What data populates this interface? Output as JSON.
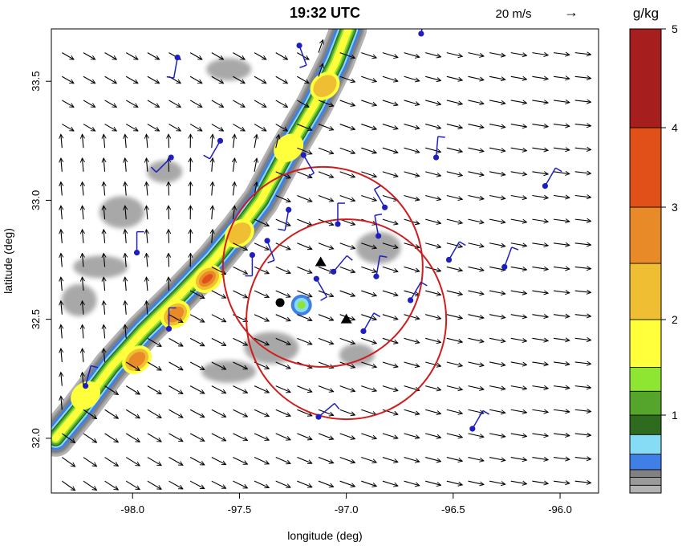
{
  "title": "19:32 UTC",
  "vector_scale": {
    "label": "20 m/s",
    "arrow_glyph": "→"
  },
  "colorbar": {
    "unit": "g/kg",
    "tick_labels": [
      "1",
      "2",
      "3",
      "4",
      "5"
    ],
    "bins": [
      {
        "lo": 0.0,
        "hi": 0.1,
        "color": "#b3b3b3"
      },
      {
        "lo": 0.1,
        "hi": 0.2,
        "color": "#9a9a9a"
      },
      {
        "lo": 0.2,
        "hi": 0.3,
        "color": "#808080"
      },
      {
        "lo": 0.3,
        "hi": 0.5,
        "color": "#3f7fe6"
      },
      {
        "lo": 0.5,
        "hi": 0.75,
        "color": "#86dbf5"
      },
      {
        "lo": 0.75,
        "hi": 1.0,
        "color": "#2e6b1f"
      },
      {
        "lo": 1.0,
        "hi": 1.25,
        "color": "#55a52c"
      },
      {
        "lo": 1.25,
        "hi": 1.5,
        "color": "#8fe632"
      },
      {
        "lo": 1.5,
        "hi": 2.0,
        "color": "#ffff3c"
      },
      {
        "lo": 2.0,
        "hi": 2.5,
        "color": "#f0be32"
      },
      {
        "lo": 2.5,
        "hi": 3.0,
        "color": "#e88a28"
      },
      {
        "lo": 3.0,
        "hi": 4.0,
        "color": "#e25019"
      },
      {
        "lo": 4.0,
        "hi": 5.0,
        "color": "#a61e1e"
      }
    ]
  },
  "axes": {
    "xlabel": "longitude (deg)",
    "ylabel": "latitude (deg)",
    "xlim": [
      -98.38,
      -95.82
    ],
    "ylim": [
      31.77,
      33.72
    ],
    "xticks": [
      {
        "v": -98.0,
        "t": "-98.0"
      },
      {
        "v": -97.5,
        "t": "-97.5"
      },
      {
        "v": -97.0,
        "t": "-97.0"
      },
      {
        "v": -96.5,
        "t": "-96.5"
      },
      {
        "v": -96.0,
        "t": "-96.0"
      }
    ],
    "yticks": [
      {
        "v": 32.0,
        "t": "32.0"
      },
      {
        "v": 32.5,
        "t": "32.5"
      },
      {
        "v": 33.0,
        "t": "33.0"
      },
      {
        "v": 33.5,
        "t": "33.5"
      }
    ]
  },
  "map_features": {
    "rain_band": {
      "path": [
        [
          -98.36,
          32.0
        ],
        [
          -98.25,
          32.12
        ],
        [
          -98.1,
          32.3
        ],
        [
          -97.95,
          32.45
        ],
        [
          -97.78,
          32.6
        ],
        [
          -97.62,
          32.75
        ],
        [
          -97.5,
          32.88
        ],
        [
          -97.4,
          33.0
        ],
        [
          -97.28,
          33.2
        ],
        [
          -97.15,
          33.4
        ],
        [
          -97.05,
          33.58
        ],
        [
          -96.99,
          33.72
        ]
      ],
      "peak_qr": [
        [
          -97.65,
          32.67,
          3.4
        ],
        [
          -97.98,
          32.33,
          2.5
        ],
        [
          -97.8,
          32.52,
          2.6
        ],
        [
          -97.5,
          32.86,
          2.2
        ],
        [
          -97.27,
          33.22,
          1.7
        ],
        [
          -97.1,
          33.48,
          2.1
        ],
        [
          -98.22,
          32.18,
          1.6
        ]
      ]
    },
    "gray_patches": [
      [
        -97.85,
        33.12
      ],
      [
        -98.05,
        32.95
      ],
      [
        -98.15,
        32.72
      ],
      [
        -98.25,
        32.58
      ],
      [
        -97.55,
        33.55
      ],
      [
        -97.35,
        32.38
      ],
      [
        -96.95,
        32.35
      ],
      [
        -96.85,
        32.8
      ],
      [
        -97.55,
        32.28
      ]
    ],
    "small_cell": [
      -97.21,
      32.56
    ],
    "radar_circles": [
      {
        "center": [
          -97.11,
          32.72
        ],
        "radius_deg": 0.42,
        "color": "#d01c1c"
      },
      {
        "center": [
          -97.0,
          32.5
        ],
        "radius_deg": 0.42,
        "color": "#d01c1c"
      }
    ],
    "radar_triangles": [
      [
        -97.12,
        32.74
      ],
      [
        -97.0,
        32.5
      ]
    ],
    "black_dot": [
      -97.31,
      32.57
    ],
    "wind_barb_stations": [
      [
        -97.79,
        33.6
      ],
      [
        -97.22,
        33.65
      ],
      [
        -96.65,
        33.7
      ],
      [
        -97.82,
        33.18
      ],
      [
        -97.59,
        33.25
      ],
      [
        -97.2,
        33.19
      ],
      [
        -96.58,
        33.18
      ],
      [
        -96.07,
        33.06
      ],
      [
        -97.98,
        32.78
      ],
      [
        -97.27,
        32.96
      ],
      [
        -97.04,
        32.9
      ],
      [
        -96.82,
        32.97
      ],
      [
        -97.37,
        32.83
      ],
      [
        -96.85,
        32.85
      ],
      [
        -97.44,
        32.77
      ],
      [
        -96.52,
        32.75
      ],
      [
        -96.26,
        32.72
      ],
      [
        -97.06,
        32.7
      ],
      [
        -97.14,
        32.67
      ],
      [
        -96.86,
        32.68
      ],
      [
        -96.7,
        32.58
      ],
      [
        -96.92,
        32.45
      ],
      [
        -97.83,
        32.46
      ],
      [
        -98.22,
        32.22
      ],
      [
        -97.13,
        32.09
      ],
      [
        -96.41,
        32.04
      ]
    ]
  }
}
